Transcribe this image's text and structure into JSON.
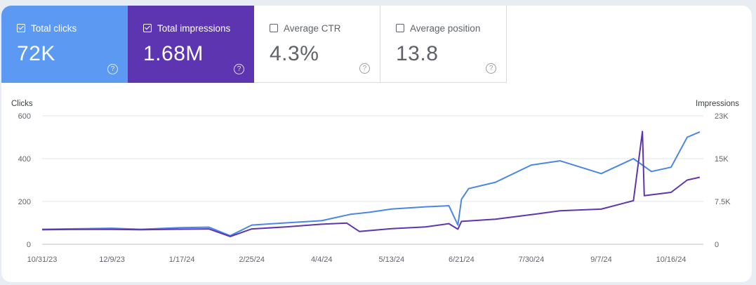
{
  "metrics": [
    {
      "label": "Total clicks",
      "value": "72K",
      "checked": true
    },
    {
      "label": "Total impressions",
      "value": "1.68M",
      "checked": true
    },
    {
      "label": "Average CTR",
      "value": "4.3%",
      "checked": false
    },
    {
      "label": "Average position",
      "value": "13.8",
      "checked": false
    }
  ],
  "help_icon": "question-circle-icon",
  "colors": {
    "clicks": "#4a86e8",
    "impressions": "#5e35b1"
  },
  "chart_data": {
    "type": "line",
    "x_axis": {
      "ticks": [
        "10/31/23",
        "12/9/23",
        "1/17/24",
        "2/25/24",
        "4/4/24",
        "5/13/24",
        "6/21/24",
        "7/30/24",
        "9/7/24",
        "10/16/24"
      ]
    },
    "y_left": {
      "label": "Clicks",
      "ticks": [
        "600",
        "400",
        "200",
        "0"
      ],
      "range": [
        0,
        600
      ]
    },
    "y_right": {
      "label": "Impressions",
      "ticks": [
        "23K",
        "15K",
        "7.5K",
        "0"
      ],
      "range": [
        0,
        23000
      ]
    },
    "grid": true,
    "series": [
      {
        "name": "Clicks",
        "color": "#4a86e8",
        "axis": "left",
        "points": [
          [
            "10/31/23",
            70
          ],
          [
            "11/15/23",
            72
          ],
          [
            "12/9/23",
            75
          ],
          [
            "12/25/23",
            70
          ],
          [
            "1/17/24",
            78
          ],
          [
            "2/1/24",
            80
          ],
          [
            "2/13/24",
            40
          ],
          [
            "2/25/24",
            90
          ],
          [
            "3/15/24",
            100
          ],
          [
            "4/4/24",
            110
          ],
          [
            "4/20/24",
            140
          ],
          [
            "5/1/24",
            150
          ],
          [
            "5/13/24",
            165
          ],
          [
            "6/1/24",
            175
          ],
          [
            "6/14/24",
            180
          ],
          [
            "6/19/24",
            90
          ],
          [
            "6/21/24",
            210
          ],
          [
            "6/25/24",
            260
          ],
          [
            "7/10/24",
            290
          ],
          [
            "7/30/24",
            370
          ],
          [
            "8/15/24",
            390
          ],
          [
            "9/7/24",
            330
          ],
          [
            "9/25/24",
            400
          ],
          [
            "10/5/24",
            340
          ],
          [
            "10/16/24",
            360
          ],
          [
            "10/25/24",
            500
          ],
          [
            "11/1/24",
            525
          ]
        ]
      },
      {
        "name": "Impressions",
        "color": "#5e35b1",
        "axis": "right",
        "points": [
          [
            "10/31/23",
            2600
          ],
          [
            "11/15/23",
            2650
          ],
          [
            "12/9/23",
            2680
          ],
          [
            "12/25/23",
            2600
          ],
          [
            "1/17/24",
            2700
          ],
          [
            "2/1/24",
            2750
          ],
          [
            "2/13/24",
            1400
          ],
          [
            "2/25/24",
            2750
          ],
          [
            "3/15/24",
            3100
          ],
          [
            "4/4/24",
            3600
          ],
          [
            "4/18/24",
            3800
          ],
          [
            "4/25/24",
            2300
          ],
          [
            "5/13/24",
            2800
          ],
          [
            "6/1/24",
            3100
          ],
          [
            "6/14/24",
            3700
          ],
          [
            "6/19/24",
            2700
          ],
          [
            "6/21/24",
            4100
          ],
          [
            "7/10/24",
            4500
          ],
          [
            "7/30/24",
            5300
          ],
          [
            "8/15/24",
            6000
          ],
          [
            "9/7/24",
            6300
          ],
          [
            "9/25/24",
            7800
          ],
          [
            "9/30/24",
            20200
          ],
          [
            "10/1/24",
            8700
          ],
          [
            "10/16/24",
            9300
          ],
          [
            "10/25/24",
            11500
          ],
          [
            "11/1/24",
            12000
          ]
        ]
      }
    ]
  }
}
